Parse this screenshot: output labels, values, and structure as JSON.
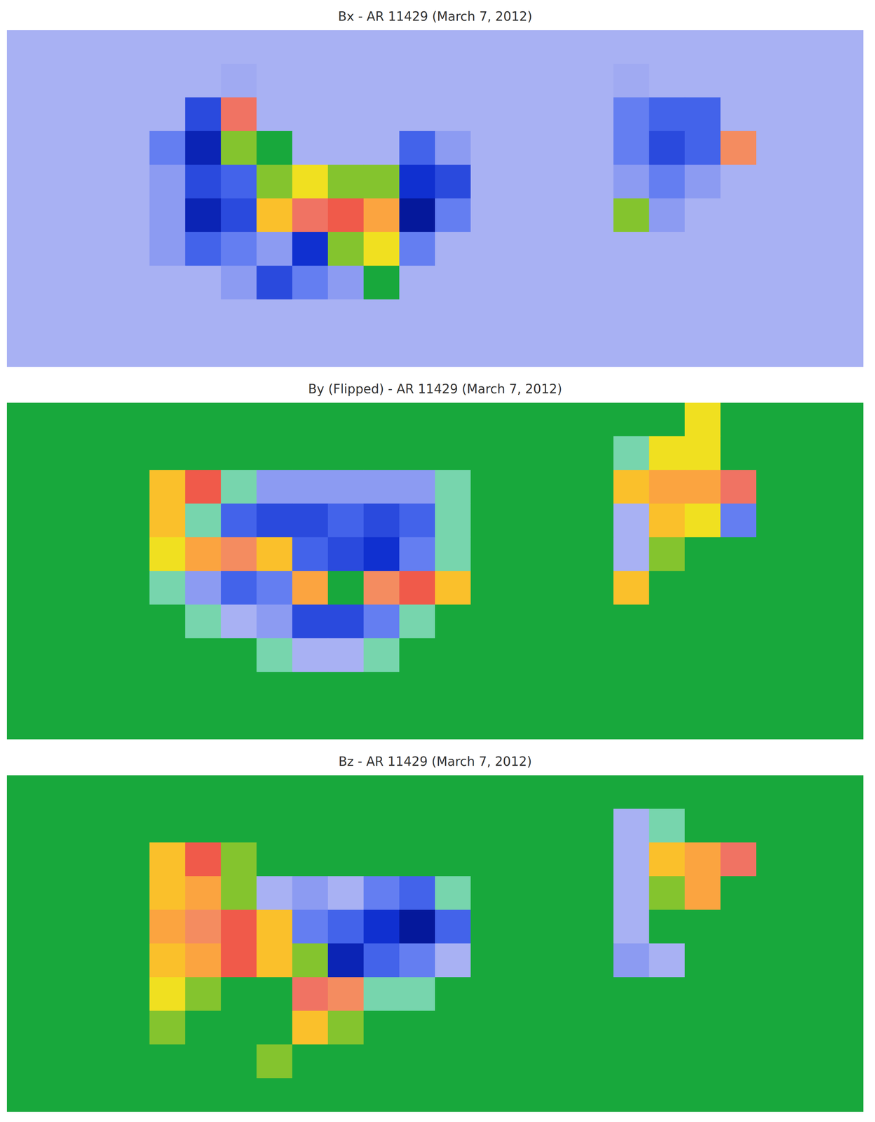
{
  "chart_data": [
    {
      "type": "heatmap",
      "title": "Bx - AR 11429 (March 7, 2012)",
      "tick_labels": false,
      "zlim": [
        -1,
        1
      ],
      "cells": [
        [
          -0.2,
          -0.2,
          -0.2,
          -0.2,
          -0.2,
          -0.2,
          -0.2,
          -0.2,
          -0.2,
          -0.2,
          -0.2,
          -0.2,
          -0.2,
          -0.2,
          -0.2,
          -0.2,
          -0.2,
          -0.2,
          -0.2,
          -0.2,
          -0.2,
          -0.2,
          -0.2,
          -0.2
        ],
        [
          -0.2,
          -0.2,
          -0.2,
          -0.2,
          -0.2,
          -0.2,
          -0.25,
          -0.2,
          -0.2,
          -0.2,
          -0.2,
          -0.2,
          -0.2,
          -0.2,
          -0.2,
          -0.2,
          -0.2,
          -0.25,
          -0.2,
          -0.2,
          -0.2,
          -0.2,
          -0.2,
          -0.2
        ],
        [
          -0.2,
          -0.2,
          -0.2,
          -0.2,
          -0.2,
          -0.6,
          0.6,
          -0.2,
          -0.2,
          -0.2,
          -0.2,
          -0.2,
          -0.2,
          -0.2,
          -0.2,
          -0.2,
          -0.2,
          -0.4,
          -0.5,
          -0.5,
          -0.2,
          -0.2,
          -0.2,
          -0.2
        ],
        [
          -0.2,
          -0.2,
          -0.2,
          -0.2,
          -0.4,
          -0.8,
          0.1,
          0.0,
          -0.2,
          -0.2,
          -0.2,
          -0.5,
          -0.3,
          -0.2,
          -0.2,
          -0.2,
          -0.2,
          -0.4,
          -0.6,
          -0.5,
          0.5,
          -0.2,
          -0.2,
          -0.2
        ],
        [
          -0.2,
          -0.2,
          -0.2,
          -0.2,
          -0.3,
          -0.6,
          -0.5,
          0.1,
          0.2,
          0.1,
          0.1,
          -0.7,
          -0.6,
          -0.2,
          -0.2,
          -0.2,
          -0.2,
          -0.3,
          -0.4,
          -0.3,
          -0.2,
          -0.2,
          -0.2,
          -0.2
        ],
        [
          -0.2,
          -0.2,
          -0.2,
          -0.2,
          -0.3,
          -0.8,
          -0.6,
          0.3,
          0.6,
          0.7,
          0.4,
          -0.9,
          -0.4,
          -0.2,
          -0.2,
          -0.2,
          -0.2,
          0.1,
          -0.3,
          -0.2,
          -0.2,
          -0.2,
          -0.2,
          -0.2
        ],
        [
          -0.2,
          -0.2,
          -0.2,
          -0.2,
          -0.3,
          -0.5,
          -0.4,
          -0.3,
          -0.7,
          0.1,
          0.2,
          -0.4,
          -0.2,
          -0.2,
          -0.2,
          -0.2,
          -0.2,
          -0.2,
          -0.2,
          -0.2,
          -0.2,
          -0.2,
          -0.2,
          -0.2
        ],
        [
          -0.2,
          -0.2,
          -0.2,
          -0.2,
          -0.2,
          -0.2,
          -0.3,
          -0.6,
          -0.4,
          -0.3,
          0.0,
          -0.2,
          -0.2,
          -0.2,
          -0.2,
          -0.2,
          -0.2,
          -0.2,
          -0.2,
          -0.2,
          -0.2,
          -0.2,
          -0.2,
          -0.2
        ],
        [
          -0.2,
          -0.2,
          -0.2,
          -0.2,
          -0.2,
          -0.2,
          -0.2,
          -0.2,
          -0.2,
          -0.2,
          -0.2,
          -0.2,
          -0.2,
          -0.2,
          -0.2,
          -0.2,
          -0.2,
          -0.2,
          -0.2,
          -0.2,
          -0.2,
          -0.2,
          -0.2,
          -0.2
        ],
        [
          -0.2,
          -0.2,
          -0.2,
          -0.2,
          -0.2,
          -0.2,
          -0.2,
          -0.2,
          -0.2,
          -0.2,
          -0.2,
          -0.2,
          -0.2,
          -0.2,
          -0.2,
          -0.2,
          -0.2,
          -0.2,
          -0.2,
          -0.2,
          -0.2,
          -0.2,
          -0.2,
          -0.2
        ]
      ]
    },
    {
      "type": "heatmap",
      "title": "By (Flipped) - AR 11429 (March 7, 2012)",
      "tick_labels": false,
      "zlim": [
        -1,
        1
      ],
      "cells": [
        [
          0,
          0,
          0,
          0,
          0,
          0,
          0,
          0,
          0,
          0,
          0,
          0,
          0,
          0,
          0,
          0,
          0,
          0,
          0,
          0.2,
          0,
          0,
          0,
          0
        ],
        [
          0,
          0,
          0,
          0,
          0,
          0,
          0,
          0,
          0,
          0,
          0,
          0,
          0,
          0,
          0,
          0,
          0,
          -0.1,
          0.2,
          0.2,
          0,
          0,
          0,
          0
        ],
        [
          0,
          0,
          0,
          0,
          0.3,
          0.7,
          -0.1,
          -0.3,
          -0.3,
          -0.3,
          -0.3,
          -0.3,
          -0.1,
          0,
          0,
          0,
          0,
          0.3,
          0.4,
          0.4,
          0.6,
          0,
          0,
          0
        ],
        [
          0,
          0,
          0,
          0,
          0.3,
          -0.1,
          -0.5,
          -0.6,
          -0.6,
          -0.5,
          -0.6,
          -0.5,
          -0.1,
          0,
          0,
          0,
          0,
          -0.2,
          0.3,
          0.2,
          -0.4,
          0,
          0,
          0
        ],
        [
          0,
          0,
          0,
          0,
          0.2,
          0.4,
          0.5,
          0.3,
          -0.5,
          -0.6,
          -0.7,
          -0.4,
          -0.1,
          0,
          0,
          0,
          0,
          -0.2,
          0.1,
          0,
          0,
          0,
          0,
          0
        ],
        [
          0,
          0,
          0,
          0,
          -0.1,
          -0.3,
          -0.5,
          -0.4,
          0.4,
          0.0,
          0.5,
          0.7,
          0.3,
          0,
          0,
          0,
          0,
          0.3,
          0,
          0,
          0,
          0,
          0,
          0
        ],
        [
          0,
          0,
          0,
          0,
          0,
          -0.1,
          -0.2,
          -0.3,
          -0.6,
          -0.6,
          -0.4,
          -0.1,
          0,
          0,
          0,
          0,
          0,
          0,
          0,
          0,
          0,
          0,
          0,
          0
        ],
        [
          0,
          0,
          0,
          0,
          0,
          0,
          0,
          -0.1,
          -0.2,
          -0.2,
          -0.1,
          0,
          0,
          0,
          0,
          0,
          0,
          0,
          0,
          0,
          0,
          0,
          0,
          0
        ],
        [
          0,
          0,
          0,
          0,
          0,
          0,
          0,
          0,
          0,
          0,
          0,
          0,
          0,
          0,
          0,
          0,
          0,
          0,
          0,
          0,
          0,
          0,
          0,
          0
        ],
        [
          0,
          0,
          0,
          0,
          0,
          0,
          0,
          0,
          0,
          0,
          0,
          0,
          0,
          0,
          0,
          0,
          0,
          0,
          0,
          0,
          0,
          0,
          0,
          0
        ]
      ]
    },
    {
      "type": "heatmap",
      "title": "Bz - AR 11429 (March 7, 2012)",
      "tick_labels": false,
      "zlim": [
        -1,
        1
      ],
      "cells": [
        [
          0,
          0,
          0,
          0,
          0,
          0,
          0,
          0,
          0,
          0,
          0,
          0,
          0,
          0,
          0,
          0,
          0,
          0,
          0,
          0,
          0,
          0,
          0,
          0
        ],
        [
          0,
          0,
          0,
          0,
          0,
          0,
          0,
          0,
          0,
          0,
          0,
          0,
          0,
          0,
          0,
          0,
          0,
          -0.2,
          -0.1,
          0,
          0,
          0,
          0,
          0
        ],
        [
          0,
          0,
          0,
          0,
          0.3,
          0.7,
          0.1,
          0,
          0,
          0,
          0,
          0,
          0,
          0,
          0,
          0,
          0,
          -0.2,
          0.3,
          0.4,
          0.6,
          0,
          0,
          0
        ],
        [
          0,
          0,
          0,
          0,
          0.3,
          0.4,
          0.1,
          -0.2,
          -0.3,
          -0.2,
          -0.4,
          -0.5,
          -0.1,
          0,
          0,
          0,
          0,
          -0.2,
          0.1,
          0.4,
          0,
          0,
          0,
          0
        ],
        [
          0,
          0,
          0,
          0,
          0.4,
          0.5,
          0.7,
          0.3,
          -0.4,
          -0.5,
          -0.7,
          -0.9,
          -0.5,
          0,
          0,
          0,
          0,
          -0.2,
          0,
          0,
          0,
          0,
          0,
          0
        ],
        [
          0,
          0,
          0,
          0,
          0.3,
          0.4,
          0.7,
          0.3,
          0.1,
          -0.8,
          -0.5,
          -0.4,
          -0.2,
          0,
          0,
          0,
          0,
          -0.3,
          -0.2,
          0,
          0,
          0,
          0,
          0
        ],
        [
          0,
          0,
          0,
          0,
          0.2,
          0.1,
          0,
          0,
          0.6,
          0.5,
          -0.1,
          -0.1,
          0,
          0,
          0,
          0,
          0,
          0,
          0,
          0,
          0,
          0,
          0,
          0
        ],
        [
          0,
          0,
          0,
          0,
          0.1,
          0,
          0,
          0,
          0.3,
          0.1,
          0,
          0,
          0,
          0,
          0,
          0,
          0,
          0,
          0,
          0,
          0,
          0,
          0,
          0
        ],
        [
          0,
          0,
          0,
          0,
          0,
          0,
          0,
          0.1,
          0,
          0,
          0,
          0,
          0,
          0,
          0,
          0,
          0,
          0,
          0,
          0,
          0,
          0,
          0,
          0
        ],
        [
          0,
          0,
          0,
          0,
          0,
          0,
          0,
          0,
          0,
          0,
          0,
          0,
          0,
          0,
          0,
          0,
          0,
          0,
          0,
          0,
          0,
          0,
          0,
          0
        ]
      ]
    }
  ]
}
